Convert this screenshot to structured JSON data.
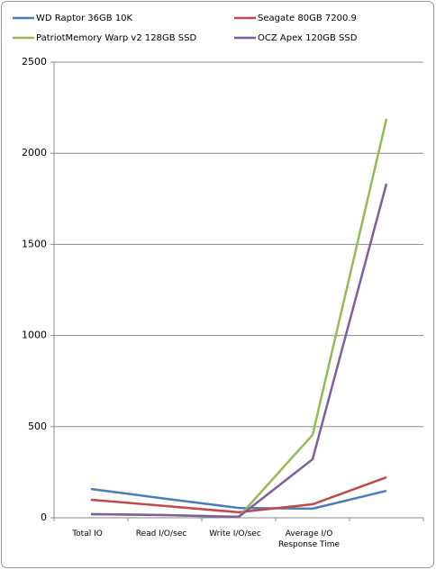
{
  "chart_data": {
    "type": "line",
    "categories": [
      "Total IO",
      "Read I/O/sec",
      "Write I/O/sec",
      "Average I/O Response Time",
      null
    ],
    "series": [
      {
        "name": "WD Raptor 36GB 10K",
        "color": "#4a7ebb",
        "values": [
          158,
          105,
          54,
          50,
          148
        ]
      },
      {
        "name": "Seagate 80GB 7200.9",
        "color": "#be4b48",
        "values": [
          99,
          65,
          30,
          74,
          222
        ]
      },
      {
        "name": "PatriotMemory Warp v2 128GB SSD",
        "color": "#98b954",
        "values": [
          20,
          15,
          5,
          455,
          2189
        ]
      },
      {
        "name": "OCZ Apex 120GB SSD",
        "color": "#7d5fa0",
        "values": [
          20,
          15,
          5,
          321,
          1833
        ]
      }
    ],
    "ylim": [
      0,
      2500
    ],
    "yticks": [
      0,
      500,
      1000,
      1500,
      2000,
      2500
    ],
    "grid": true,
    "legend": "top"
  }
}
